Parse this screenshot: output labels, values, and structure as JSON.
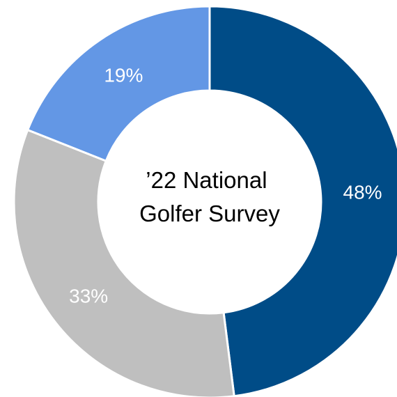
{
  "chart_data": {
    "type": "pie",
    "donut": true,
    "center_text": [
      "’22 National",
      "Golfer Survey"
    ],
    "legend": "none",
    "slices": [
      {
        "label": "48%",
        "value": 48,
        "color": "#004C87",
        "label_color": "#FFFFFF"
      },
      {
        "label": "33%",
        "value": 33,
        "color": "#BFBFBF",
        "label_color": "#FFFFFF"
      },
      {
        "label": "19%",
        "value": 19,
        "color": "#6397E5",
        "label_color": "#FFFFFF"
      }
    ]
  }
}
